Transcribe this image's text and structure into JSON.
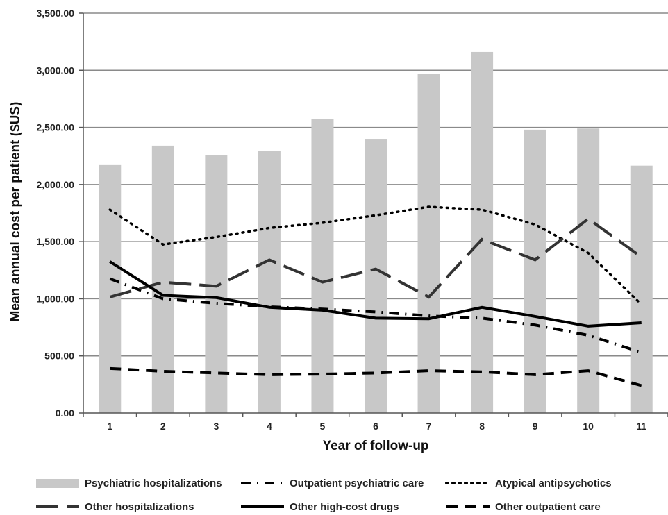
{
  "chart_data": {
    "type": "bar",
    "categories": [
      "1",
      "2",
      "3",
      "4",
      "5",
      "6",
      "7",
      "8",
      "9",
      "10",
      "11"
    ],
    "xlabel": "Year of follow-up",
    "ylabel": "Mean annual cost per patient ($US)",
    "ylim": [
      0,
      3500
    ],
    "yticks": [
      "0.00",
      "500.00",
      "1,000.00",
      "1,500.00",
      "2,000.00",
      "2,500.00",
      "3,000.00",
      "3,500.00"
    ],
    "grid": true,
    "legend_position": "bottom",
    "series": [
      {
        "name": "Psychiatric hospitalizations",
        "kind": "bar",
        "style": "bar",
        "color": "#c8c8c8",
        "values": [
          2170,
          2340,
          2260,
          2295,
          2575,
          2400,
          2970,
          3160,
          2480,
          2490,
          2165
        ]
      },
      {
        "name": "Outpatient psychiatric care",
        "kind": "line",
        "style": "dashdot",
        "color": "#000000",
        "values": [
          1175,
          1000,
          960,
          930,
          910,
          885,
          850,
          830,
          770,
          680,
          530
        ]
      },
      {
        "name": "Atypical antipsychotics",
        "kind": "line",
        "style": "dotted",
        "color": "#000000",
        "values": [
          1780,
          1475,
          1540,
          1620,
          1665,
          1730,
          1805,
          1780,
          1650,
          1400,
          950
        ]
      },
      {
        "name": "Other hospitalizations",
        "kind": "line",
        "style": "longdash",
        "color": "#333333",
        "values": [
          1015,
          1145,
          1110,
          1340,
          1145,
          1260,
          1015,
          1520,
          1340,
          1700,
          1365
        ]
      },
      {
        "name": "Other high-cost drugs",
        "kind": "line",
        "style": "solid",
        "color": "#000000",
        "values": [
          1325,
          1030,
          1010,
          925,
          900,
          830,
          825,
          925,
          845,
          760,
          790
        ]
      },
      {
        "name": "Other outpatient care",
        "kind": "line",
        "style": "dashed",
        "color": "#000000",
        "values": [
          390,
          365,
          350,
          335,
          340,
          350,
          370,
          360,
          335,
          370,
          240
        ]
      }
    ]
  }
}
